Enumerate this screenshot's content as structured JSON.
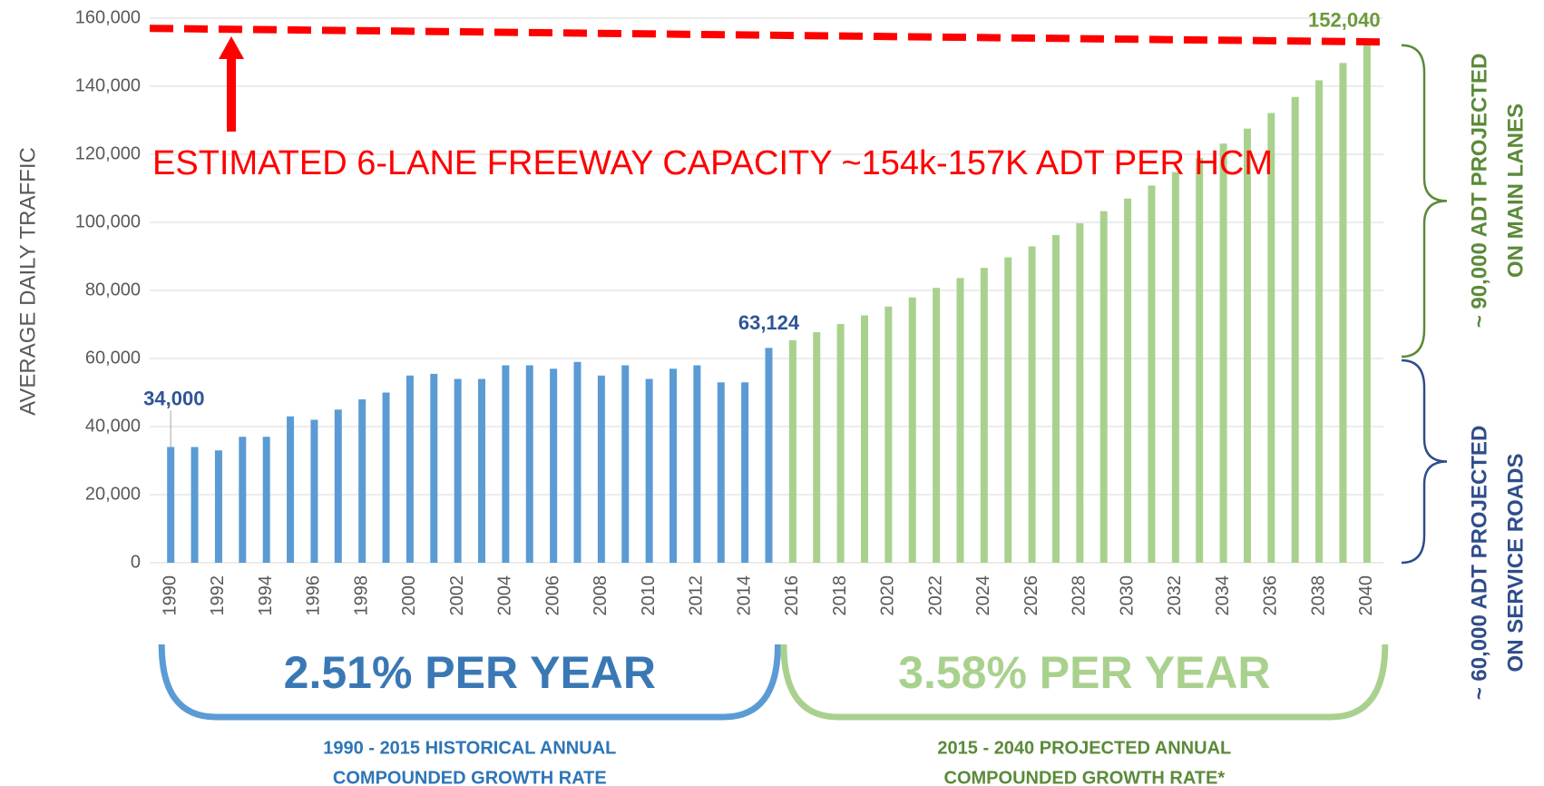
{
  "chart_data": {
    "type": "bar",
    "y_axis_label": "AVERAGE DAILY TRAFFIC",
    "categories": [
      "1990",
      null,
      "1992",
      null,
      "1994",
      null,
      "1996",
      null,
      "1998",
      null,
      "2000",
      null,
      "2002",
      null,
      "2004",
      null,
      "2006",
      null,
      "2008",
      null,
      "2010",
      null,
      "2012",
      null,
      "2014",
      null,
      "2016",
      null,
      "2018",
      null,
      "2020",
      null,
      "2022",
      null,
      "2024",
      null,
      "2026",
      null,
      "2028",
      null,
      "2030",
      null,
      "2032",
      null,
      "2034",
      null,
      "2036",
      null,
      "2038",
      null,
      "2040"
    ],
    "series": [
      {
        "color": "#5b9bd5",
        "label_color": "#2f5597",
        "values": [
          34000,
          34000,
          33000,
          37000,
          37000,
          43000,
          42000,
          45000,
          48000,
          50000,
          55000,
          55500,
          54000,
          54000,
          58000,
          58000,
          57000,
          59000,
          55000,
          58000,
          54000,
          57000,
          58000,
          53000,
          53000,
          63124,
          null,
          null,
          null,
          null,
          null,
          null,
          null,
          null,
          null,
          null,
          null,
          null,
          null,
          null,
          null,
          null,
          null,
          null,
          null,
          null,
          null,
          null,
          null,
          null,
          null
        ],
        "value_labels": [
          "34,000",
          null,
          null,
          null,
          null,
          null,
          null,
          null,
          null,
          null,
          null,
          null,
          null,
          null,
          null,
          null,
          null,
          null,
          null,
          null,
          null,
          null,
          null,
          null,
          null,
          "63,124",
          null,
          null,
          null,
          null,
          null,
          null,
          null,
          null,
          null,
          null,
          null,
          null,
          null,
          null,
          null,
          null,
          null,
          null,
          null,
          null,
          null,
          null,
          null,
          null,
          null
        ]
      },
      {
        "color": "#a9d18e",
        "label_color": "#6a9a3c",
        "values": [
          null,
          null,
          null,
          null,
          null,
          null,
          null,
          null,
          null,
          null,
          null,
          null,
          null,
          null,
          null,
          null,
          null,
          null,
          null,
          null,
          null,
          null,
          null,
          null,
          null,
          null,
          65384,
          67725,
          70149,
          72661,
          75262,
          77956,
          80747,
          83638,
          86632,
          89734,
          92946,
          96274,
          99720,
          103290,
          106988,
          110818,
          114786,
          118895,
          123151,
          127560,
          132127,
          136857,
          141756,
          146831,
          152040
        ],
        "value_labels": [
          null,
          null,
          null,
          null,
          null,
          null,
          null,
          null,
          null,
          null,
          null,
          null,
          null,
          null,
          null,
          null,
          null,
          null,
          null,
          null,
          null,
          null,
          null,
          null,
          null,
          null,
          null,
          null,
          null,
          null,
          null,
          null,
          null,
          null,
          null,
          null,
          null,
          null,
          null,
          null,
          null,
          null,
          null,
          null,
          null,
          null,
          null,
          null,
          null,
          null,
          "152,040"
        ]
      }
    ],
    "ylim": [
      0,
      160000
    ],
    "yticks": [
      0,
      {
        "value": 20000,
        "label": "20,000"
      },
      {
        "value": 40000,
        "label": "40,000"
      },
      {
        "value": 60000,
        "label": "60,000"
      },
      {
        "value": 80000,
        "label": "80,000"
      },
      {
        "value": 100000,
        "label": "100,000"
      },
      {
        "value": 120000,
        "label": "120,000"
      },
      {
        "value": 140000,
        "label": "140,000"
      },
      {
        "value": 160000,
        "label": "160,000"
      }
    ],
    "grid": true,
    "capacity_line": {
      "start": 157000,
      "end": 153000,
      "color": "#ff0000",
      "label": "ESTIMATED 6-LANE FREEWAY CAPACITY ~154k-157K ADT PER HCM"
    },
    "historical": {
      "rate": "2.51% PER YEAR",
      "caption": [
        "1990 - 2015 HISTORICAL ANNUAL",
        "COMPOUNDED GROWTH RATE"
      ]
    },
    "projected": {
      "rate": "3.58% PER YEAR",
      "caption": [
        "2015 - 2040 PROJECTED ANNUAL",
        "COMPOUNDED GROWTH RATE*"
      ]
    },
    "main_lanes": [
      "~ 90,000 ADT PROJECTED",
      "ON MAIN LANES"
    ],
    "service_roads": [
      "~ 60,000 ADT PROJECTED",
      "ON SERVICE ROADS"
    ]
  }
}
